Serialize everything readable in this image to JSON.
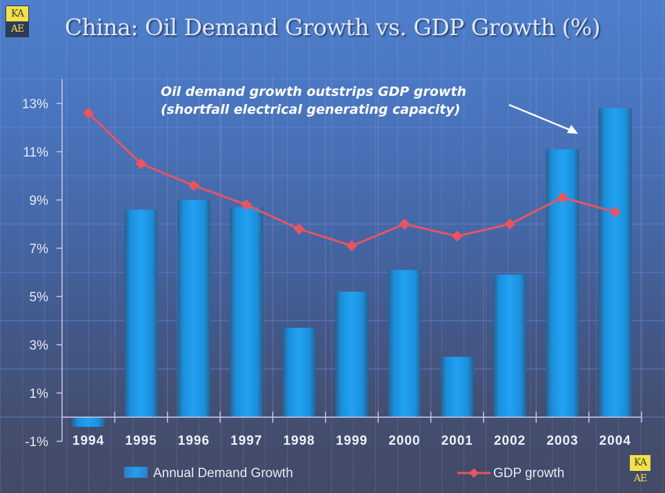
{
  "page": {
    "title": "China: Oil Demand Growth vs. GDP Growth (%)",
    "annotation_line1": "Oil demand growth outstrips GDP growth",
    "annotation_line2": "(shortfall electrical generating capacity)",
    "logo_top": "KA",
    "logo_bottom": "AE"
  },
  "colors": {
    "bar": "#1f9cf0",
    "bar_edge": "#2b5f8f",
    "line": "#e8555f",
    "axis": "#cfc8e6",
    "gridline": "#5b86d8",
    "text": "#e6ebf5"
  },
  "chart_data": {
    "type": "bar",
    "title": "China: Oil Demand Growth vs. GDP Growth (%)",
    "xlabel": "",
    "ylabel": "",
    "categories": [
      "1994",
      "1995",
      "1996",
      "1997",
      "1998",
      "1999",
      "2000",
      "2001",
      "2002",
      "2003",
      "2004"
    ],
    "series": [
      {
        "name": "Annual Demand Growth",
        "type": "bar",
        "values": [
          -0.4,
          8.6,
          9.0,
          8.7,
          3.7,
          5.2,
          6.1,
          2.5,
          5.9,
          11.1,
          12.8
        ]
      },
      {
        "name": "GDP growth",
        "type": "line",
        "marker": "diamond",
        "values": [
          12.6,
          10.5,
          9.6,
          8.8,
          7.8,
          7.1,
          8.0,
          7.5,
          8.0,
          9.1,
          8.5
        ]
      }
    ],
    "yticks": [
      "-1%",
      "1%",
      "3%",
      "5%",
      "7%",
      "9%",
      "11%",
      "13%"
    ],
    "ytick_values": [
      -1,
      1,
      3,
      5,
      7,
      9,
      11,
      13
    ],
    "ylim": [
      -1,
      14
    ],
    "grid": true,
    "legend": "bottom",
    "annotations": [
      {
        "text": "Oil demand growth outstrips GDP growth (shortfall electrical generating capacity)",
        "points_to": "2004"
      }
    ]
  }
}
